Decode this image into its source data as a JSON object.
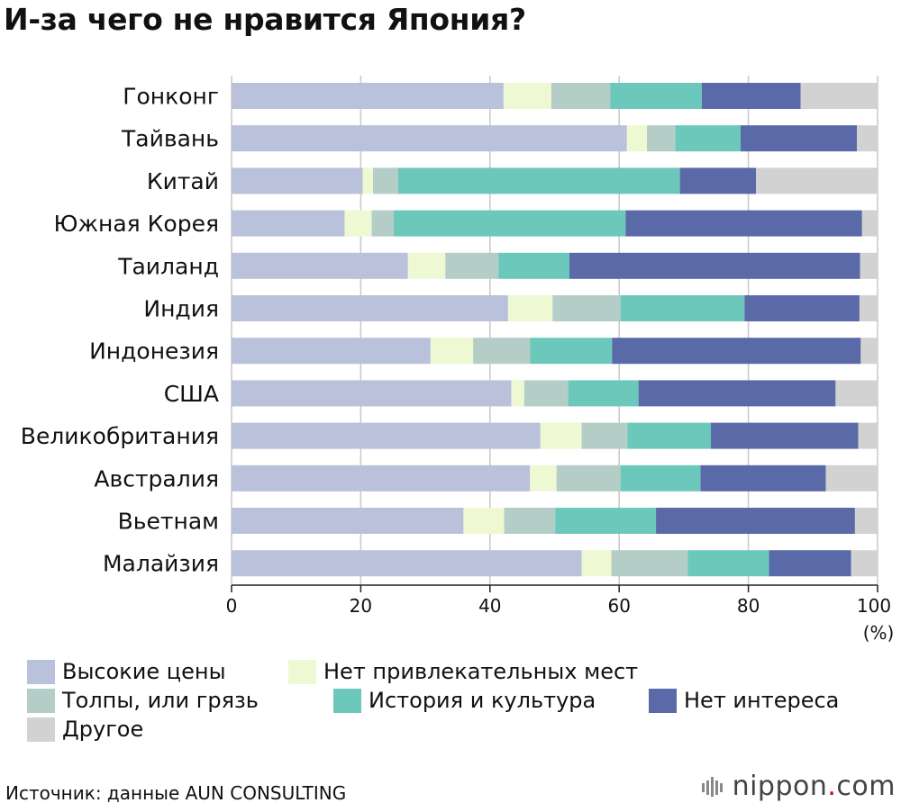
{
  "title": "И-за чего не нравится Япония?",
  "source": "Источник: данные AUN CONSULTING",
  "brand": {
    "name": "nippon",
    "dot": ".",
    "tld": "com"
  },
  "chart_data": {
    "type": "bar",
    "orientation": "horizontal",
    "stacked": true,
    "title": "И-за чего не нравится Япония?",
    "xlabel": "(%)",
    "ylabel": "",
    "xlim": [
      0,
      100
    ],
    "xticks": [
      "0",
      "20",
      "40",
      "60",
      "80",
      "100"
    ],
    "grid": true,
    "legend_position": "bottom",
    "categories": [
      "Гонконг",
      "Тайвань",
      "Китай",
      "Южная Корея",
      "Таиланд",
      "Индия",
      "Индонезия",
      "США",
      "Великобритания",
      "Австралия",
      "Вьетнам",
      "Малайзия"
    ],
    "series": [
      {
        "name": "Высокие цены",
        "color": "#b9c1db",
        "values": [
          42.1,
          61.2,
          20.3,
          17.5,
          27.3,
          42.8,
          30.8,
          43.3,
          47.8,
          46.2,
          35.9,
          54.2
        ]
      },
      {
        "name": "Нет привлекательных мест",
        "color": "#eef8d2",
        "values": [
          7.4,
          3.1,
          1.6,
          4.2,
          5.8,
          6.9,
          6.6,
          2.0,
          6.4,
          4.1,
          6.3,
          4.6
        ]
      },
      {
        "name": "Толпы, или грязь",
        "color": "#b4cdc7",
        "values": [
          9.1,
          4.4,
          3.9,
          3.4,
          8.2,
          10.5,
          8.8,
          6.8,
          7.1,
          9.9,
          7.9,
          11.8
        ]
      },
      {
        "name": "История и культура",
        "color": "#6cc8bb",
        "values": [
          14.2,
          10.1,
          43.6,
          35.9,
          11.0,
          19.2,
          12.7,
          10.9,
          12.9,
          12.4,
          15.6,
          12.6
        ]
      },
      {
        "name": "Нет интереса",
        "color": "#5a6aa8",
        "values": [
          15.3,
          18.0,
          11.8,
          36.6,
          45.0,
          17.8,
          38.5,
          30.5,
          22.8,
          19.4,
          30.8,
          12.7
        ]
      },
      {
        "name": "Другое",
        "color": "#d2d2d2",
        "values": [
          11.9,
          3.2,
          18.8,
          2.4,
          2.7,
          2.8,
          2.6,
          6.5,
          3.0,
          8.0,
          3.5,
          4.1
        ]
      }
    ]
  }
}
